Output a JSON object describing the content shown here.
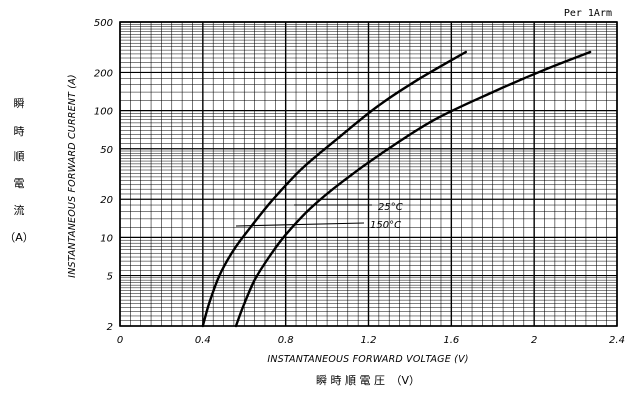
{
  "chart_data": {
    "type": "line",
    "note": "Per 1Arm",
    "xlabel": "INSTANTANEOUS FORWARD VOLTAGE (V)",
    "xlabel_jp": "瞬 時 順 電 圧　（V）",
    "ylabel": "INSTANTANEOUS FORWARD CURRENT (A)",
    "ylabel_jp": [
      "瞬",
      "時",
      "順",
      "電",
      "流",
      "（A）"
    ],
    "xlim": [
      0,
      2.4
    ],
    "ylim": [
      2,
      500
    ],
    "yscale": "log",
    "grid": true,
    "x_ticks": [
      "0",
      "0.4",
      "0.8",
      "1.2",
      "1.6",
      "2",
      "2.4"
    ],
    "y_ticks": [
      "2",
      "5",
      "10",
      "20",
      "50",
      "100",
      "200",
      "500"
    ],
    "series": [
      {
        "name": "25°C",
        "x": [
          0.4,
          0.43,
          0.48,
          0.55,
          0.63,
          0.74,
          0.88,
          1.05,
          1.25,
          1.45,
          1.67
        ],
        "y": [
          2,
          3,
          5,
          8,
          12,
          20,
          35,
          60,
          110,
          180,
          290
        ]
      },
      {
        "name": "150°C",
        "x": [
          0.56,
          0.6,
          0.65,
          0.72,
          0.8,
          0.92,
          1.08,
          1.28,
          1.52,
          1.8,
          2.05,
          2.27
        ],
        "y": [
          2,
          3,
          4.6,
          7,
          10.5,
          17,
          28,
          48,
          85,
          140,
          210,
          290
        ]
      }
    ]
  }
}
